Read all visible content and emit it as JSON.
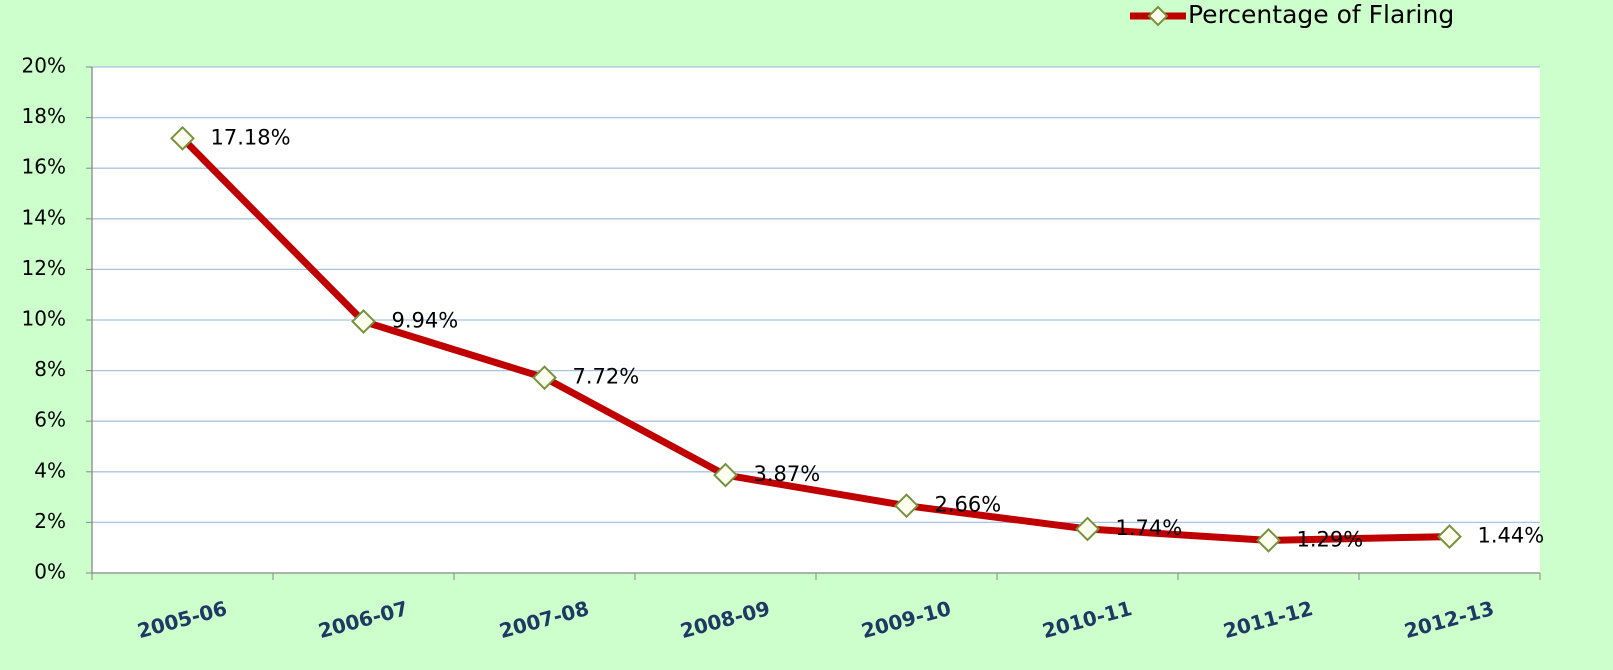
{
  "chart_data": {
    "type": "line",
    "categories": [
      "2005-06",
      "2006-07",
      "2007-08",
      "2008-09",
      "2009-10",
      "2010-11",
      "2011-12",
      "2012-13"
    ],
    "series": [
      {
        "name": "Percentage of Flaring",
        "color": "#c00000",
        "values": [
          17.18,
          9.94,
          7.72,
          3.87,
          2.66,
          1.74,
          1.29,
          1.44
        ],
        "value_labels": [
          "17.18%",
          "9.94%",
          "7.72%",
          "3.87%",
          "2.66%",
          "1.74%",
          "1.29%",
          "1.44%"
        ]
      }
    ],
    "ylim": [
      0,
      20
    ],
    "yticks": [
      {
        "value": 0,
        "label": "0%"
      },
      {
        "value": 2,
        "label": "2%"
      },
      {
        "value": 4,
        "label": "4%"
      },
      {
        "value": 6,
        "label": "6%"
      },
      {
        "value": 8,
        "label": "8%"
      },
      {
        "value": 10,
        "label": "10%"
      },
      {
        "value": 12,
        "label": "12%"
      },
      {
        "value": 14,
        "label": "14%"
      },
      {
        "value": 16,
        "label": "16%"
      },
      {
        "value": 18,
        "label": "18%"
      },
      {
        "value": 20,
        "label": "20%"
      }
    ],
    "grid": true,
    "legend": "top-right"
  }
}
